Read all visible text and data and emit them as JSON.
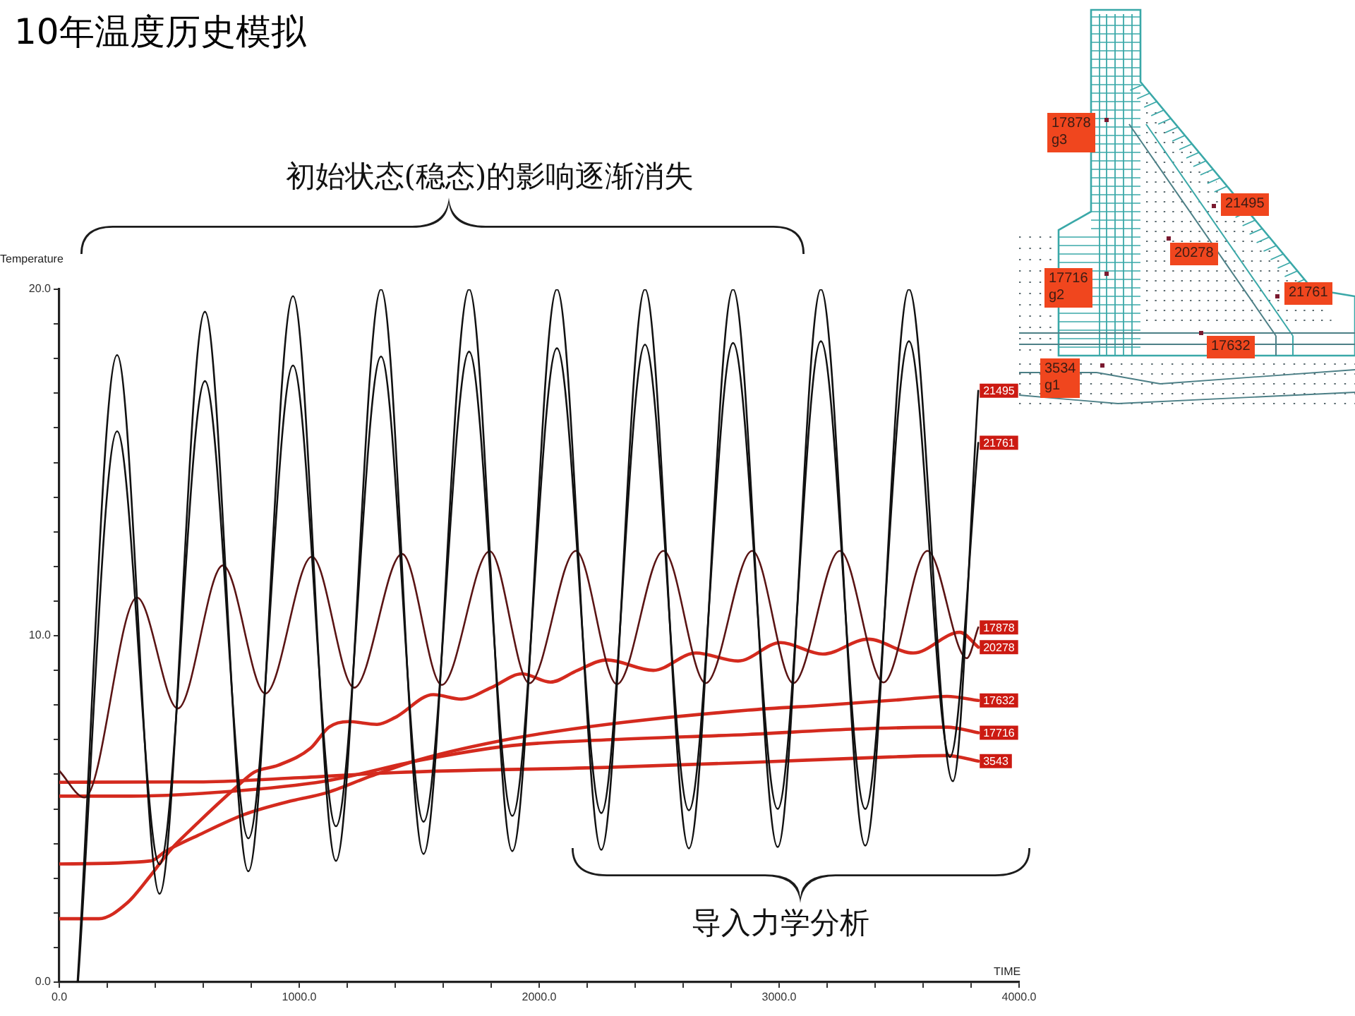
{
  "chart_data": {
    "type": "line",
    "title": "10年温度历史模拟",
    "xlabel": "TIME",
    "ylabel": "Temperature",
    "annotations": [
      "初始状态(稳态)的影响逐渐消失",
      "导入力学分析",
      "17878\ng3",
      "21495",
      "20278",
      "17716\ng2",
      "21761",
      "17632",
      "3534\ng1"
    ],
    "xlim": [
      0,
      4000
    ],
    "ylim": [
      0,
      20
    ],
    "xticks": [
      {
        "value": 0,
        "label": "0.0"
      },
      {
        "value": 200,
        "label": null
      },
      {
        "value": 400,
        "label": null
      },
      {
        "value": 600,
        "label": null
      },
      {
        "value": 800,
        "label": null
      },
      {
        "value": 1000,
        "label": "1000.0"
      },
      {
        "value": 1200,
        "label": null
      },
      {
        "value": 1400,
        "label": null
      },
      {
        "value": 1600,
        "label": null
      },
      {
        "value": 1800,
        "label": null
      },
      {
        "value": 2000,
        "label": "2000.0"
      },
      {
        "value": 2200,
        "label": null
      },
      {
        "value": 2400,
        "label": null
      },
      {
        "value": 2600,
        "label": null
      },
      {
        "value": 2800,
        "label": null
      },
      {
        "value": 3000,
        "label": "3000.0"
      },
      {
        "value": 3200,
        "label": null
      },
      {
        "value": 3400,
        "label": null
      },
      {
        "value": 3600,
        "label": null
      },
      {
        "value": 3800,
        "label": null
      },
      {
        "value": 4000,
        "label": "4000.0"
      }
    ],
    "yticks": [
      {
        "value": 0,
        "label": "0.0"
      },
      {
        "value": 1,
        "label": null
      },
      {
        "value": 2,
        "label": null
      },
      {
        "value": 3,
        "label": null
      },
      {
        "value": 4,
        "label": null
      },
      {
        "value": 5,
        "label": null
      },
      {
        "value": 6,
        "label": null
      },
      {
        "value": 7,
        "label": null
      },
      {
        "value": 8,
        "label": null
      },
      {
        "value": 9,
        "label": null
      },
      {
        "value": 10,
        "label": "10.0"
      },
      {
        "value": 11,
        "label": null
      },
      {
        "value": 12,
        "label": null
      },
      {
        "value": 13,
        "label": null
      },
      {
        "value": 14,
        "label": null
      },
      {
        "value": 15,
        "label": null
      },
      {
        "value": 16,
        "label": null
      },
      {
        "value": 17,
        "label": null
      },
      {
        "value": 18,
        "label": null
      },
      {
        "value": 19,
        "label": null
      },
      {
        "value": 20,
        "label": "20.0"
      }
    ],
    "series": [
      {
        "name": "21495",
        "color": "#111111",
        "x": [
          76,
          241,
          418,
          607,
          788,
          974,
          1153,
          1341,
          1518,
          1708,
          1888,
          2074,
          2259,
          2441,
          2624,
          2808,
          2994,
          3174,
          3359,
          3541,
          3724,
          3830
        ],
        "values": [
          0,
          18.1,
          2.55,
          19.35,
          3.2,
          19.8,
          3.5,
          20,
          3.7,
          20,
          3.78,
          20,
          3.82,
          20,
          3.86,
          20,
          3.9,
          20,
          3.94,
          20,
          5.8,
          17.07
        ]
      },
      {
        "name": "21761",
        "color": "#111111",
        "x": [
          78,
          241,
          418,
          607,
          788,
          974,
          1153,
          1341,
          1518,
          1708,
          1888,
          2074,
          2259,
          2441,
          2624,
          2808,
          2994,
          3174,
          3359,
          3541,
          3712,
          3830
        ],
        "values": [
          0,
          15.9,
          3.4,
          17.35,
          4.15,
          17.8,
          4.5,
          18.06,
          4.63,
          18.2,
          4.8,
          18.3,
          4.88,
          18.4,
          4.96,
          18.45,
          5.0,
          18.5,
          5.0,
          18.5,
          6.5,
          15.57
        ]
      },
      {
        "name": "17878",
        "color": "#5a1414",
        "x": [
          0,
          106,
          324,
          494,
          682,
          859,
          1053,
          1229,
          1429,
          1594,
          1794,
          1959,
          2153,
          2324,
          2518,
          2694,
          2888,
          3059,
          3253,
          3435,
          3618,
          3782,
          3830
        ],
        "values": [
          6.1,
          5.33,
          11.1,
          7.9,
          12.03,
          8.33,
          12.28,
          8.5,
          12.36,
          8.58,
          12.44,
          8.63,
          12.45,
          8.6,
          12.45,
          8.63,
          12.45,
          8.63,
          12.45,
          8.65,
          12.45,
          9.35,
          10.24
        ]
      },
      {
        "name": "20278",
        "color": "#d42a1e",
        "x": [
          0,
          165,
          282,
          382,
          459,
          576,
          735,
          812,
          912,
          1047,
          1124,
          1206,
          1324,
          1400,
          1559,
          1676,
          1800,
          1929,
          2047,
          2160,
          2282,
          2476,
          2653,
          2829,
          3006,
          3182,
          3371,
          3559,
          3753,
          3830
        ],
        "values": [
          1.83,
          1.83,
          2.28,
          3.09,
          3.78,
          4.59,
          5.61,
          6.06,
          6.26,
          6.75,
          7.36,
          7.52,
          7.44,
          7.64,
          8.3,
          8.17,
          8.5,
          8.9,
          8.66,
          9.0,
          9.3,
          9.0,
          9.5,
          9.27,
          9.8,
          9.47,
          9.9,
          9.5,
          10.1,
          9.67
        ]
      },
      {
        "name": "17632",
        "color": "#d42a1e",
        "x": [
          0,
          382,
          441,
          576,
          771,
          971,
          1106,
          1300,
          1500,
          1888,
          2282,
          2870,
          3200,
          3500,
          3700,
          3830
        ],
        "values": [
          3.41,
          3.5,
          3.77,
          4.23,
          4.84,
          5.24,
          5.45,
          5.95,
          6.42,
          7.03,
          7.44,
          7.85,
          8.0,
          8.15,
          8.25,
          8.13
        ]
      },
      {
        "name": "17716",
        "color": "#d42a1e",
        "x": [
          0,
          300,
          700,
          1106,
          1500,
          1888,
          2300,
          2870,
          3300,
          3700,
          3830
        ],
        "values": [
          5.37,
          5.37,
          5.5,
          5.8,
          6.4,
          6.83,
          7.0,
          7.15,
          7.3,
          7.36,
          7.2
        ]
      },
      {
        "name": "3543",
        "color": "#d42a1e",
        "x": [
          0,
          600,
          1000,
          1400,
          2282,
          2870,
          3459,
          3700,
          3830
        ],
        "values": [
          5.77,
          5.78,
          5.9,
          6.05,
          6.2,
          6.34,
          6.5,
          6.54,
          6.38
        ]
      }
    ]
  }
}
